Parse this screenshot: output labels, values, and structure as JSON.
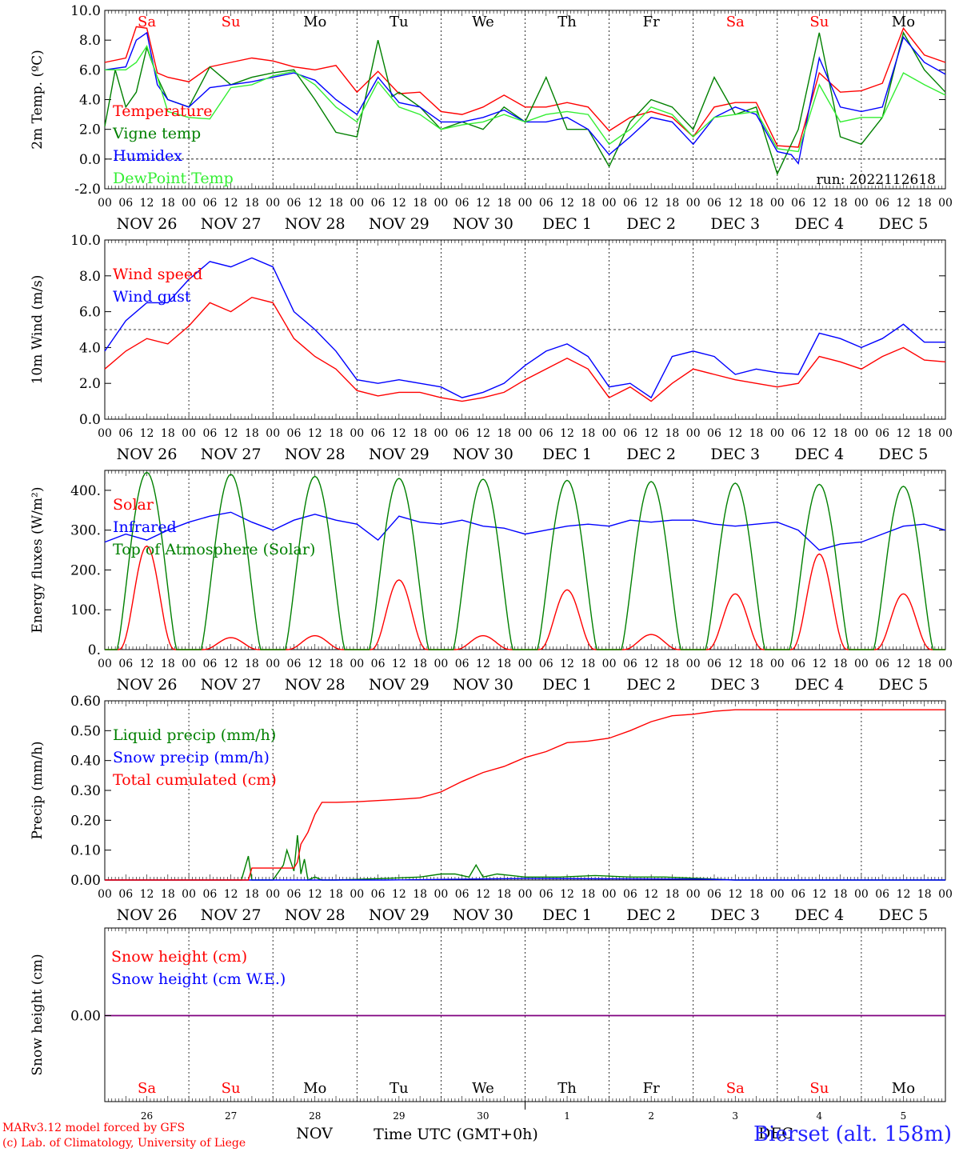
{
  "footer": {
    "credit1": "MARv3.12 model forced by GFS",
    "credit2": "(c) Lab. of Climatology, University of Liege",
    "month": "NOV",
    "month2": "DEC",
    "xlabel": "Time UTC (GMT+0h)",
    "station": "Bierset (alt. 158m)"
  },
  "colors": {
    "red": "#ff0000",
    "green": "#008000",
    "blue": "#0000ff",
    "lightgreen": "#33ee33",
    "purple": "#800080"
  },
  "hour_ticks": [
    "00",
    "06",
    "12",
    "18"
  ],
  "last_tick": "00",
  "day_labels": [
    [
      "NOV",
      "26"
    ],
    [
      "NOV",
      "27"
    ],
    [
      "NOV",
      "28"
    ],
    [
      "NOV",
      "29"
    ],
    [
      "NOV",
      "30"
    ],
    [
      "DEC",
      "1"
    ],
    [
      "DEC",
      "2"
    ],
    [
      "DEC",
      "3"
    ],
    [
      "DEC",
      "4"
    ],
    [
      "DEC",
      "5"
    ]
  ],
  "weekdays": [
    "Sa",
    "Su",
    "Mo",
    "Tu",
    "We",
    "Th",
    "Fr",
    "Sa",
    "Su",
    "Mo"
  ],
  "weekday_red": [
    true,
    true,
    false,
    false,
    false,
    false,
    false,
    true,
    true,
    false
  ],
  "bottom_day_numbers": [
    "26",
    "27",
    "28",
    "29",
    "30",
    "1",
    "2",
    "3",
    "4",
    "5"
  ],
  "chart_data": [
    {
      "type": "line",
      "ylabel": "2m Temp. (ºC)",
      "ylim": [
        -2.0,
        10.0
      ],
      "yticks": [
        "-2.0",
        "0.0",
        "2.0",
        "4.0",
        "6.0",
        "8.0",
        "10.0"
      ],
      "hline": 0.0,
      "x_unit": "hours since NOV 26 00 UTC",
      "annotation": "run: 2022112618",
      "series": [
        {
          "name": "Temperature",
          "color": "red",
          "x": [
            0,
            6,
            9,
            12,
            15,
            18,
            24,
            30,
            36,
            42,
            48,
            54,
            60,
            66,
            72,
            78,
            84,
            90,
            96,
            102,
            108,
            114,
            120,
            126,
            132,
            138,
            144,
            150,
            156,
            162,
            168,
            174,
            180,
            186,
            192,
            198,
            204,
            210,
            216,
            222,
            228,
            234,
            240
          ],
          "y": [
            6.5,
            6.8,
            8.9,
            8.8,
            5.8,
            5.5,
            5.2,
            6.2,
            6.5,
            6.8,
            6.6,
            6.2,
            6.0,
            6.3,
            4.5,
            5.9,
            4.4,
            4.5,
            3.2,
            3.0,
            3.5,
            4.3,
            3.5,
            3.5,
            3.8,
            3.5,
            1.9,
            2.8,
            3.2,
            2.8,
            1.5,
            3.5,
            3.8,
            3.8,
            0.9,
            0.8,
            5.8,
            4.5,
            4.6,
            5.1,
            8.8,
            7.0,
            6.5
          ]
        },
        {
          "name": "Vigne temp",
          "color": "green",
          "x": [
            0,
            3,
            6,
            9,
            12,
            15,
            18,
            24,
            30,
            36,
            42,
            48,
            54,
            60,
            66,
            72,
            78,
            82,
            84,
            90,
            96,
            102,
            108,
            114,
            120,
            126,
            132,
            138,
            144,
            150,
            156,
            162,
            168,
            174,
            180,
            186,
            192,
            198,
            204,
            210,
            216,
            222,
            228,
            234,
            240
          ],
          "y": [
            2.2,
            6.0,
            3.5,
            4.5,
            7.5,
            5.5,
            4.0,
            3.5,
            6.2,
            5.0,
            5.5,
            5.8,
            6.0,
            4.0,
            1.8,
            1.5,
            8.0,
            4.2,
            4.5,
            3.5,
            2.0,
            2.5,
            2.0,
            3.5,
            2.5,
            5.5,
            2.0,
            2.0,
            -0.5,
            2.5,
            4.0,
            3.5,
            2.0,
            5.5,
            3.0,
            3.5,
            -1.0,
            2.0,
            8.5,
            1.5,
            1.0,
            2.8,
            8.5,
            6.0,
            4.5
          ]
        },
        {
          "name": "Humidex",
          "color": "blue",
          "x": [
            0,
            6,
            9,
            12,
            15,
            18,
            24,
            30,
            36,
            42,
            48,
            54,
            60,
            66,
            72,
            78,
            84,
            90,
            96,
            102,
            108,
            114,
            120,
            126,
            132,
            138,
            144,
            150,
            156,
            162,
            168,
            174,
            180,
            186,
            192,
            196,
            198,
            204,
            210,
            216,
            222,
            228,
            234,
            240
          ],
          "y": [
            6.0,
            6.2,
            8.0,
            8.5,
            5.0,
            4.0,
            3.5,
            4.8,
            5.0,
            5.2,
            5.5,
            5.8,
            5.3,
            4.0,
            3.0,
            5.5,
            3.8,
            3.5,
            2.5,
            2.5,
            2.8,
            3.3,
            2.5,
            2.5,
            2.8,
            2.0,
            0.3,
            1.5,
            2.8,
            2.5,
            1.0,
            2.8,
            3.5,
            3.0,
            0.5,
            0.3,
            -0.3,
            6.8,
            3.5,
            3.2,
            3.5,
            8.2,
            6.5,
            5.7
          ]
        },
        {
          "name": "DewPoint Temp",
          "color": "lightgreen",
          "x": [
            0,
            6,
            9,
            12,
            15,
            18,
            24,
            30,
            36,
            42,
            48,
            54,
            60,
            66,
            72,
            78,
            84,
            90,
            96,
            102,
            108,
            114,
            120,
            126,
            132,
            138,
            144,
            150,
            156,
            162,
            168,
            174,
            180,
            186,
            192,
            198,
            204,
            210,
            216,
            222,
            228,
            234,
            240
          ],
          "y": [
            6.0,
            6.0,
            6.5,
            7.6,
            5.5,
            3.2,
            2.8,
            2.7,
            4.8,
            5.0,
            5.6,
            5.9,
            5.0,
            3.5,
            2.5,
            5.2,
            3.5,
            3.0,
            2.0,
            2.3,
            2.5,
            3.0,
            2.5,
            3.0,
            3.2,
            3.0,
            1.0,
            2.0,
            3.5,
            3.0,
            1.5,
            2.8,
            3.0,
            3.2,
            0.7,
            0.5,
            5.0,
            2.5,
            2.8,
            2.8,
            5.8,
            5.0,
            4.3
          ]
        }
      ]
    },
    {
      "type": "line",
      "ylabel": "10m Wind (m/s)",
      "ylim": [
        0.0,
        10.0
      ],
      "yticks": [
        "0.0",
        "2.0",
        "4.0",
        "6.0",
        "8.0",
        "10.0"
      ],
      "hline": 5.0,
      "series": [
        {
          "name": "Wind speed",
          "color": "red",
          "x": [
            0,
            6,
            12,
            18,
            24,
            30,
            36,
            42,
            48,
            54,
            60,
            66,
            72,
            78,
            84,
            90,
            96,
            102,
            108,
            114,
            120,
            126,
            132,
            138,
            144,
            150,
            156,
            162,
            168,
            174,
            180,
            186,
            192,
            198,
            204,
            210,
            216,
            222,
            228,
            234,
            240
          ],
          "y": [
            2.8,
            3.8,
            4.5,
            4.2,
            5.2,
            6.5,
            6.0,
            6.8,
            6.5,
            4.5,
            3.5,
            2.8,
            1.6,
            1.3,
            1.5,
            1.5,
            1.2,
            1.0,
            1.2,
            1.5,
            2.2,
            2.8,
            3.4,
            2.8,
            1.2,
            1.8,
            1.0,
            2.0,
            2.8,
            2.5,
            2.2,
            2.0,
            1.8,
            2.0,
            3.5,
            3.2,
            2.8,
            3.5,
            4.0,
            3.3,
            3.2
          ]
        },
        {
          "name": "Wind gust",
          "color": "blue",
          "x": [
            0,
            6,
            12,
            18,
            24,
            30,
            36,
            42,
            48,
            54,
            60,
            66,
            72,
            78,
            84,
            90,
            96,
            102,
            108,
            114,
            120,
            126,
            132,
            138,
            144,
            150,
            156,
            162,
            168,
            174,
            180,
            186,
            192,
            198,
            204,
            210,
            216,
            222,
            228,
            234,
            240
          ],
          "y": [
            3.8,
            5.5,
            6.5,
            6.5,
            7.8,
            8.8,
            8.5,
            9.0,
            8.5,
            6.0,
            5.0,
            3.8,
            2.2,
            2.0,
            2.2,
            2.0,
            1.8,
            1.2,
            1.5,
            2.0,
            3.0,
            3.8,
            4.2,
            3.5,
            1.8,
            2.0,
            1.2,
            3.5,
            3.8,
            3.5,
            2.5,
            2.8,
            2.6,
            2.5,
            4.8,
            4.5,
            4.0,
            4.5,
            5.3,
            4.3,
            4.3
          ]
        }
      ]
    },
    {
      "type": "line",
      "ylabel": "Energy fluxes (W/m²)",
      "ylim": [
        0,
        450
      ],
      "yticks": [
        "0.",
        "100.",
        "200.",
        "300.",
        "400."
      ],
      "series": [
        {
          "name": "Solar",
          "color": "red",
          "peaks": [
            260,
            30,
            35,
            175,
            35,
            150,
            38,
            140,
            240,
            140
          ]
        },
        {
          "name": "Infrared",
          "color": "blue",
          "x": [
            0,
            6,
            12,
            18,
            24,
            30,
            36,
            42,
            48,
            54,
            60,
            66,
            72,
            78,
            84,
            90,
            96,
            102,
            108,
            114,
            120,
            126,
            132,
            138,
            144,
            150,
            156,
            162,
            168,
            174,
            180,
            186,
            192,
            198,
            204,
            210,
            216,
            222,
            228,
            234,
            240
          ],
          "y": [
            270,
            290,
            275,
            300,
            320,
            335,
            345,
            320,
            300,
            325,
            340,
            325,
            315,
            275,
            335,
            320,
            315,
            325,
            310,
            305,
            290,
            300,
            310,
            315,
            310,
            325,
            320,
            325,
            325,
            315,
            310,
            315,
            320,
            300,
            250,
            265,
            270,
            290,
            310,
            315,
            300
          ]
        },
        {
          "name": "Top of Atmosphere (Solar)",
          "color": "green",
          "peaks": [
            445,
            440,
            435,
            430,
            428,
            425,
            422,
            418,
            415,
            410
          ]
        }
      ]
    },
    {
      "type": "line",
      "ylabel": "Precip (mm/h)",
      "ylim": [
        0.0,
        0.6
      ],
      "yticks": [
        "0.00",
        "0.10",
        "0.20",
        "0.30",
        "0.40",
        "0.50",
        "0.60"
      ],
      "series": [
        {
          "name": "Liquid precip (mm/h)",
          "color": "green",
          "x": [
            0,
            39,
            41,
            42,
            44,
            48,
            51,
            52,
            54,
            55,
            56,
            57,
            58,
            60,
            62,
            64,
            66,
            80,
            90,
            96,
            100,
            104,
            106,
            108,
            112,
            120,
            130,
            140,
            150,
            160,
            170,
            180,
            240
          ],
          "y": [
            0,
            0,
            0.08,
            0,
            0,
            0,
            0.05,
            0.1,
            0.03,
            0.15,
            0.02,
            0.07,
            0,
            0.01,
            0,
            0,
            0,
            0.005,
            0.01,
            0.02,
            0.02,
            0.01,
            0.05,
            0.01,
            0.02,
            0.01,
            0.01,
            0.015,
            0.01,
            0.01,
            0.005,
            0,
            0
          ]
        },
        {
          "name": "Snow precip (mm/h)",
          "color": "blue",
          "x": [
            0,
            80,
            120,
            170,
            180,
            240
          ],
          "y": [
            0,
            0,
            0.005,
            0.003,
            0,
            0
          ]
        },
        {
          "name": "Total cumulated (cm)",
          "color": "red",
          "x": [
            0,
            41,
            42,
            54,
            55,
            56,
            58,
            60,
            62,
            66,
            72,
            84,
            90,
            96,
            102,
            108,
            114,
            120,
            126,
            132,
            138,
            144,
            150,
            156,
            162,
            168,
            174,
            180,
            186,
            192,
            198,
            204,
            216,
            228,
            240
          ],
          "y": [
            0,
            0,
            0.04,
            0.04,
            0.06,
            0.12,
            0.16,
            0.22,
            0.26,
            0.26,
            0.262,
            0.27,
            0.275,
            0.295,
            0.33,
            0.36,
            0.38,
            0.41,
            0.43,
            0.46,
            0.465,
            0.475,
            0.5,
            0.53,
            0.55,
            0.555,
            0.565,
            0.57,
            0.57,
            0.57,
            0.57,
            0.57,
            0.57,
            0.57,
            0.57
          ]
        }
      ]
    },
    {
      "type": "line",
      "ylabel": "Snow height (cm)",
      "yticks": [
        "0.00"
      ],
      "series": [
        {
          "name": "Snow height (cm)",
          "color": "red",
          "x": [
            0,
            240
          ],
          "y": [
            0,
            0
          ]
        },
        {
          "name": "Snow height (cm W.E.)",
          "color": "blue",
          "x": [
            0,
            240
          ],
          "y": [
            0,
            0
          ]
        }
      ]
    }
  ]
}
